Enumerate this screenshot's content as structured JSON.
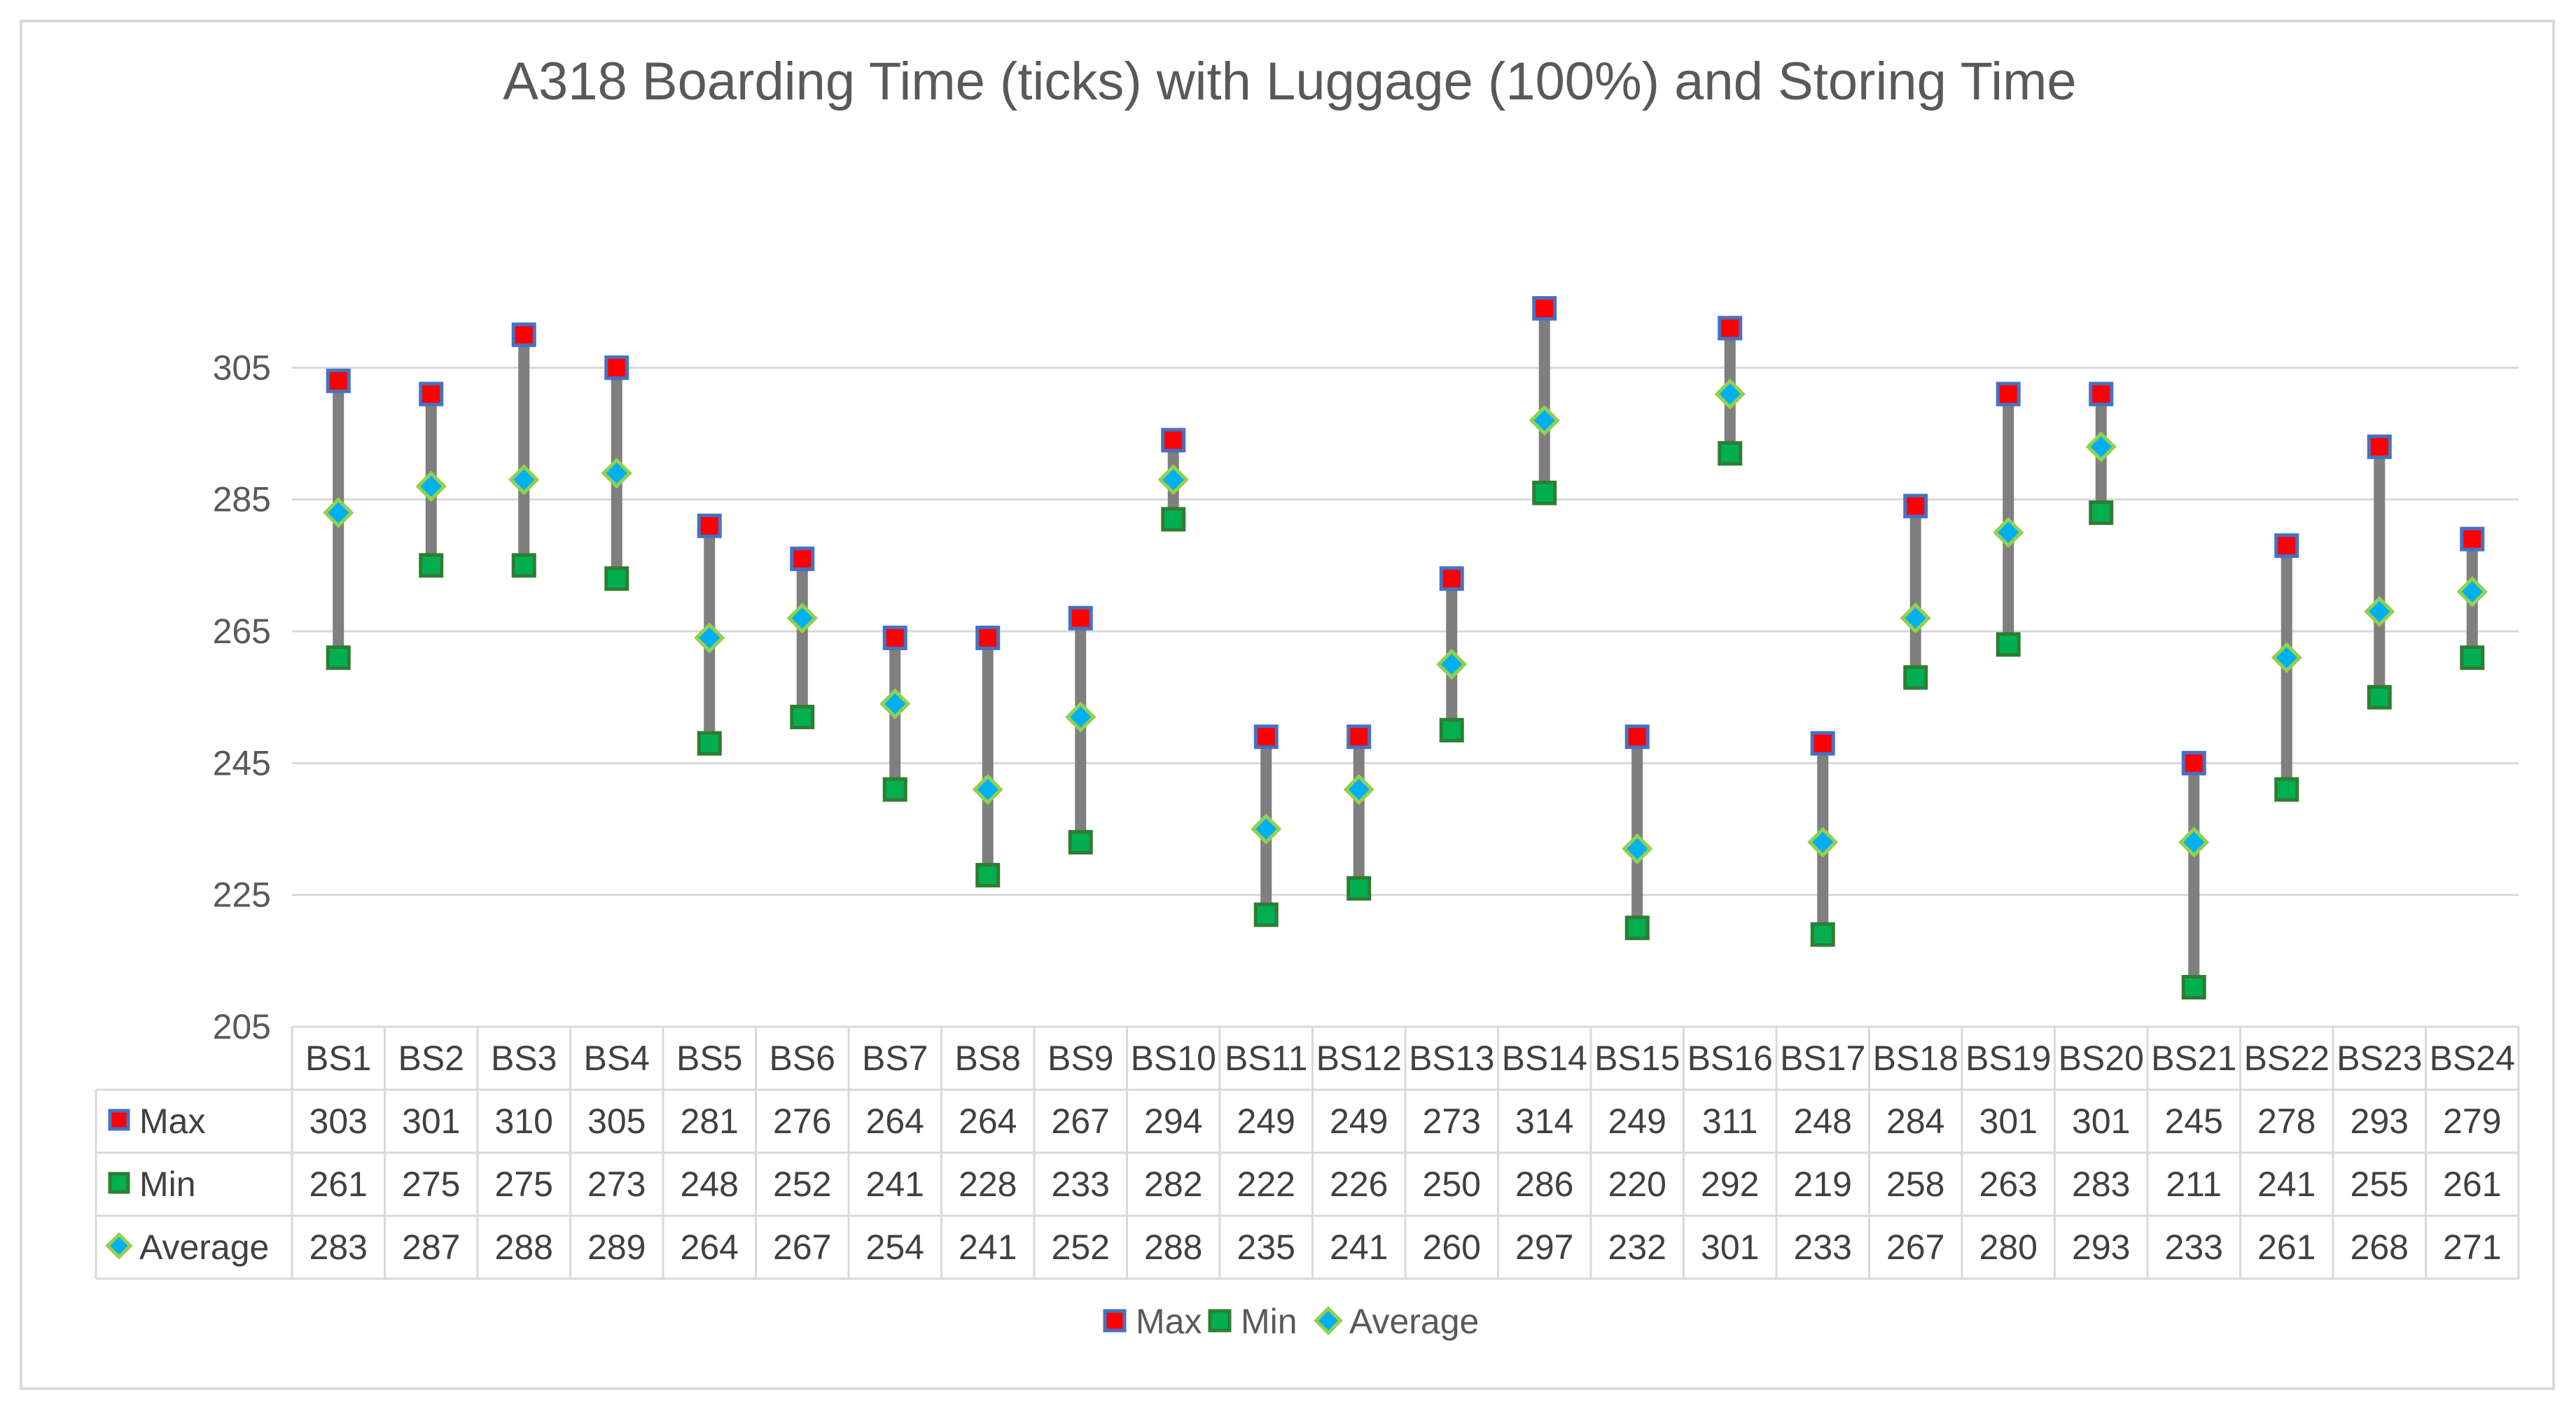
{
  "chart_data": {
    "type": "scatter",
    "title": "A318 Boarding Time (ticks) with Luggage (100%) and Storing Time",
    "categories": [
      "BS1",
      "BS2",
      "BS3",
      "BS4",
      "BS5",
      "BS6",
      "BS7",
      "BS8",
      "BS9",
      "BS10",
      "BS11",
      "BS12",
      "BS13",
      "BS14",
      "BS15",
      "BS16",
      "BS17",
      "BS18",
      "BS19",
      "BS20",
      "BS21",
      "BS22",
      "BS23",
      "BS24"
    ],
    "series": [
      {
        "name": "Max",
        "color": "#ff0000",
        "border": "#4472c4",
        "marker": "square",
        "values": [
          303,
          301,
          310,
          305,
          281,
          276,
          264,
          264,
          267,
          294,
          249,
          249,
          273,
          314,
          249,
          311,
          248,
          284,
          301,
          301,
          245,
          278,
          293,
          279
        ]
      },
      {
        "name": "Min",
        "color": "#00b050",
        "border": "#2e7d32",
        "marker": "square",
        "values": [
          261,
          275,
          275,
          273,
          248,
          252,
          241,
          228,
          233,
          282,
          222,
          226,
          250,
          286,
          220,
          292,
          219,
          258,
          263,
          283,
          211,
          241,
          255,
          261
        ]
      },
      {
        "name": "Average",
        "color": "#00b0f0",
        "border": "#92d050",
        "marker": "diamond",
        "values": [
          283,
          287,
          288,
          289,
          264,
          267,
          254,
          241,
          252,
          288,
          235,
          241,
          260,
          297,
          232,
          301,
          233,
          267,
          280,
          293,
          233,
          261,
          268,
          271
        ]
      }
    ],
    "ylim": [
      205,
      325
    ],
    "yticks": [
      205,
      225,
      245,
      265,
      285,
      305
    ],
    "xlabel": "",
    "ylabel": "",
    "legend": "bottom",
    "data_table": true,
    "highlow_color": "#7f7f7f"
  }
}
